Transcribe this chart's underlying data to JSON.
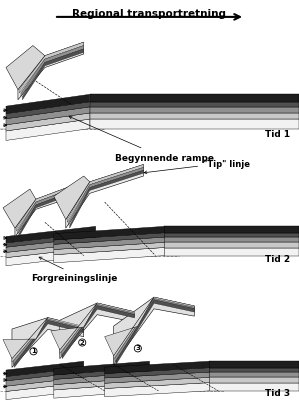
{
  "title": "Regional transportretning",
  "label_tid1": "Tid 1",
  "label_tid2": "Tid 2",
  "label_tid3": "Tid 3",
  "label_begynnende": "Begynnende rampe",
  "label_tip": "\"Tip\" linje",
  "label_forgreining": "Forgreiningslinje",
  "bg_color": "#ffffff",
  "lc": [
    "#f2f2f2",
    "#c8c8c8",
    "#909090",
    "#505050",
    "#1e1e1e"
  ],
  "lh": [
    0.28,
    0.18,
    0.18,
    0.15,
    0.22
  ]
}
